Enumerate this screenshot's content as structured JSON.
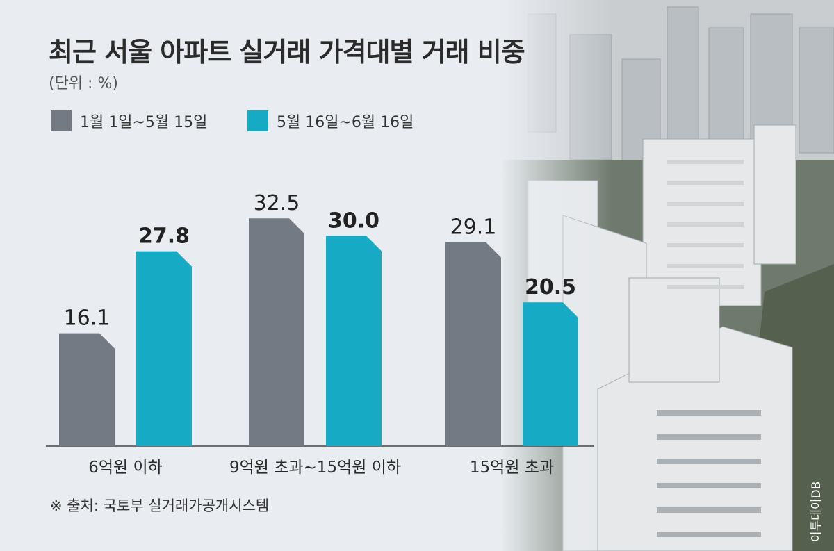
{
  "title": "최근 서울 아파트 실거래 가격대별 거래 비중",
  "unit": "(단위 : %)",
  "source": "※ 출처: 국토부 실거래가공개시스템",
  "credit": "이투데이DB",
  "colors": {
    "series1": "#727a83",
    "series2": "#16aac4",
    "background": "#e9edf1"
  },
  "chart_data": {
    "type": "bar",
    "categories": [
      "6억원 이하",
      "9억원 초과~15억원 이하",
      "15억원 초과"
    ],
    "series": [
      {
        "name": "1월 1일~5월 15일",
        "values": [
          16.1,
          32.5,
          29.1
        ],
        "labels": [
          "16.1",
          "32.5",
          "29.1"
        ]
      },
      {
        "name": "5월 16일~6월 16일",
        "values": [
          27.8,
          30.0,
          20.5
        ],
        "labels": [
          "27.8",
          "30.0",
          "20.5"
        ]
      }
    ],
    "ylim": [
      0,
      35
    ],
    "grid": false,
    "legend_position": "top-left"
  }
}
